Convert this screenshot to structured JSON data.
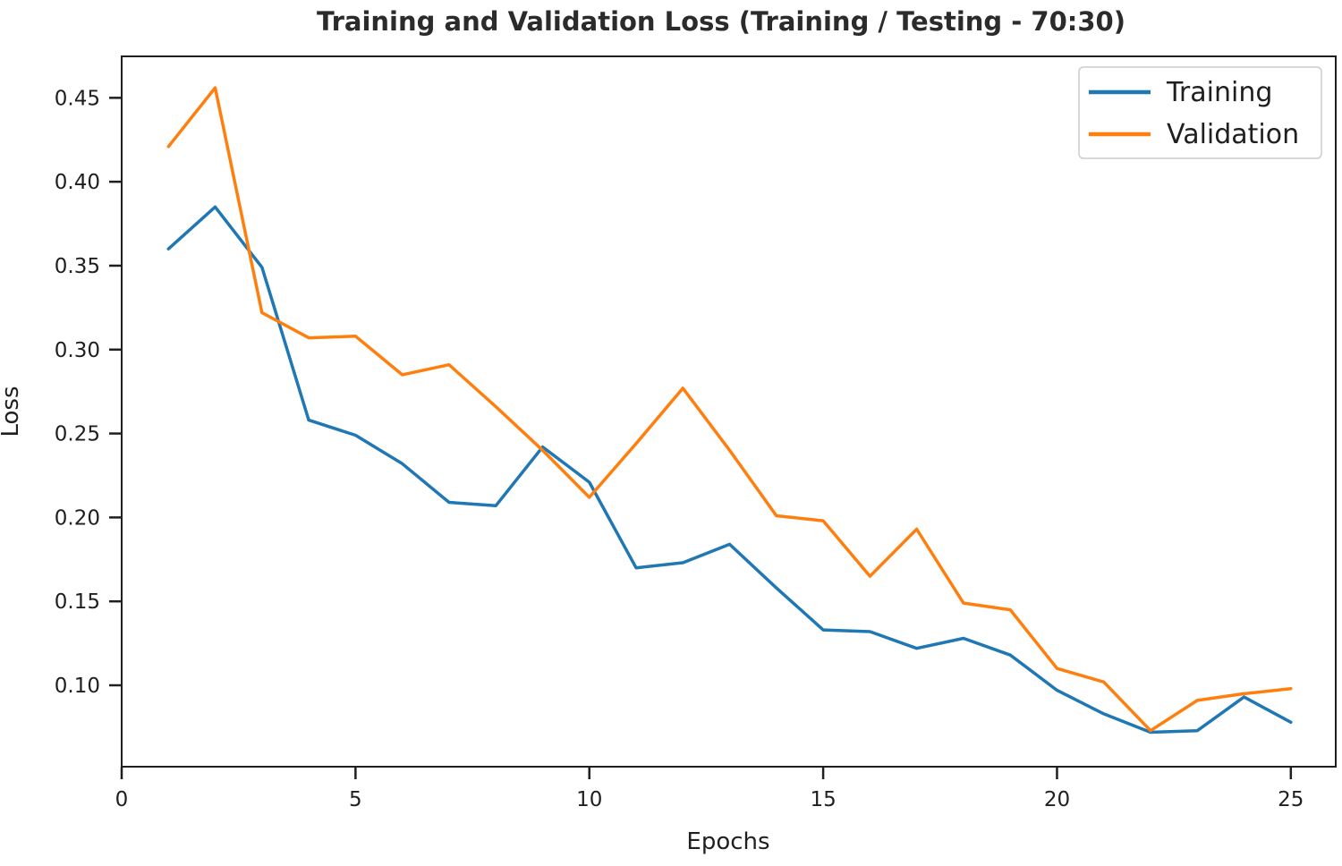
{
  "chart_data": {
    "type": "line",
    "title": "Training and Validation Loss (Training / Testing - 70:30)",
    "xlabel": "Epochs",
    "ylabel": "Loss",
    "x": [
      1,
      2,
      3,
      4,
      5,
      6,
      7,
      8,
      9,
      10,
      11,
      12,
      13,
      14,
      15,
      16,
      17,
      18,
      19,
      20,
      21,
      22,
      23,
      24,
      25
    ],
    "series": [
      {
        "name": "Training",
        "color": "#1f77b4",
        "values": [
          0.36,
          0.385,
          0.349,
          0.258,
          0.249,
          0.232,
          0.209,
          0.207,
          0.242,
          0.221,
          0.17,
          0.173,
          0.184,
          0.158,
          0.133,
          0.132,
          0.122,
          0.128,
          0.118,
          0.097,
          0.083,
          0.072,
          0.073,
          0.093,
          0.078
        ]
      },
      {
        "name": "Validation",
        "color": "#ff7f0e",
        "values": [
          0.421,
          0.456,
          0.322,
          0.307,
          0.308,
          0.285,
          0.291,
          0.266,
          0.24,
          0.212,
          0.244,
          0.277,
          0.24,
          0.201,
          0.198,
          0.165,
          0.193,
          0.149,
          0.145,
          0.11,
          0.102,
          0.073,
          0.091,
          0.095,
          0.098
        ]
      }
    ],
    "xlim": [
      0,
      25.96
    ],
    "ylim": [
      0.0515,
      0.4747
    ],
    "xticks": [
      0,
      5,
      10,
      15,
      20,
      25
    ],
    "yticks": [
      0.1,
      0.15,
      0.2,
      0.25,
      0.3,
      0.35,
      0.4,
      0.45
    ],
    "ytick_decimals": 2,
    "grid": false,
    "legend_position": "upper right"
  },
  "colors": {
    "background": "#ffffff",
    "spine": "#1f1f1f",
    "tick": "#1f1f1f",
    "text": "#1f1f1f",
    "legend_border": "#cccccc",
    "legend_background": "#ffffff"
  }
}
